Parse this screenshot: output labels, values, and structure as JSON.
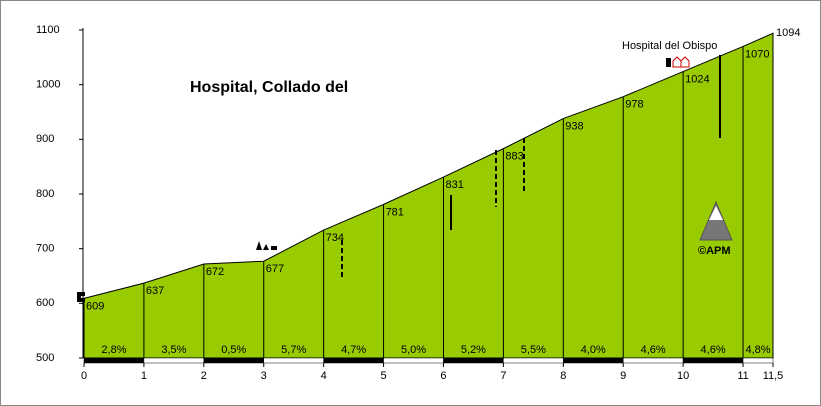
{
  "chart_data": {
    "type": "area",
    "title": "Hospital, Collado del",
    "annotation": "Hospital del Obispo",
    "logo": "©APM",
    "x": [
      0,
      1,
      2,
      3,
      4,
      5,
      6,
      7,
      8,
      9,
      10,
      11,
      11.5
    ],
    "values": [
      609,
      637,
      672,
      677,
      734,
      781,
      831,
      883,
      938,
      978,
      1024,
      1070,
      1094
    ],
    "color": "#99cc00",
    "segments": {
      "values": [
        2.8,
        3.5,
        0.5,
        5.7,
        4.7,
        5.0,
        5.2,
        5.5,
        4.0,
        4.6,
        4.6,
        4.8
      ],
      "value_labels": [
        "2,8%",
        "3,5%",
        "0,5%",
        "5,7%",
        "4,7%",
        "5,0%",
        "5,2%",
        "5,5%",
        "4,0%",
        "4,6%",
        "4,6%",
        "4,8%"
      ]
    },
    "xlim": [
      0,
      11.5
    ],
    "ylim": [
      500,
      1100
    ],
    "xticks": [
      0,
      1,
      2,
      3,
      4,
      5,
      6,
      7,
      8,
      9,
      10,
      11,
      {
        "value": 11.5,
        "label": "11,5"
      }
    ],
    "yticks": [
      500,
      600,
      700,
      800,
      900,
      1000,
      1100
    ]
  }
}
